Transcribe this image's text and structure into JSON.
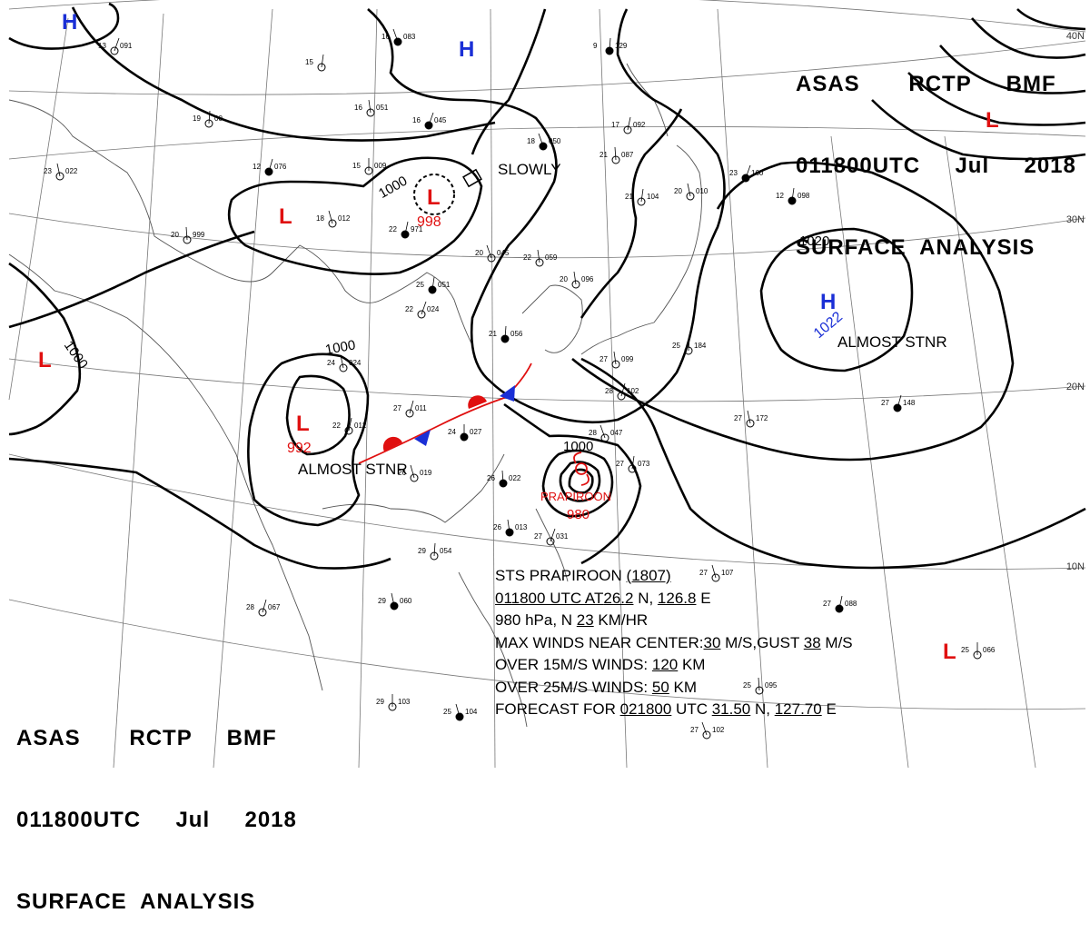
{
  "header": {
    "line1": [
      "ASAS",
      "RCTP",
      "BMF"
    ],
    "line2": [
      "011800UTC",
      "Jul",
      "2018"
    ],
    "line3": "SURFACE  ANALYSIS"
  },
  "latitude_labels": [
    "40N",
    "30N",
    "20N",
    "10N"
  ],
  "colors": {
    "high": "#1a2fd6",
    "low": "#e01010",
    "isobar": "#000000",
    "warm_front": "#e01010",
    "cold_front": "#1a2fd6"
  },
  "pressure_systems": {
    "highs": [
      {
        "symbol": "H",
        "value": ""
      },
      {
        "symbol": "H",
        "value": ""
      },
      {
        "symbol": "H",
        "value": "1022",
        "note": "ALMOST STNR"
      }
    ],
    "lows": [
      {
        "symbol": "L",
        "value": ""
      },
      {
        "symbol": "L",
        "value": "998",
        "note": "SLOWLY"
      },
      {
        "symbol": "L",
        "value": ""
      },
      {
        "symbol": "L",
        "value": "992",
        "note": "ALMOST STNR"
      },
      {
        "symbol": "L",
        "value": ""
      },
      {
        "symbol": "L",
        "value": ""
      }
    ]
  },
  "isobar_labels": [
    "1000",
    "1000",
    "1000",
    "1000",
    "1020"
  ],
  "typhoon": {
    "name": "PRAPIROON",
    "pressure": "980"
  },
  "storm_info": {
    "l1": [
      "STS  PRAPIROON  ",
      "(1807)"
    ],
    "l2": [
      "011800 UTC  AT",
      "26.2",
      " N,  ",
      "126.8",
      " E"
    ],
    "l3": [
      "980 hPa, N  ",
      "23",
      " KM/HR"
    ],
    "l4": [
      "MAX WINDS NEAR CENTER:",
      "30",
      " M/S,GUST ",
      "38",
      " M/S"
    ],
    "l5": [
      "OVER 15M/S WINDS: ",
      "120",
      " KM"
    ],
    "l6": [
      "OVER 25M/S WINDS: ",
      "50",
      " KM"
    ],
    "l7": [
      "FORECAST FOR ",
      "021800",
      " UTC ",
      "31.50",
      " N, ",
      "127.70",
      " E"
    ]
  },
  "station_plots": [
    {
      "t": "16",
      "p": "083"
    },
    {
      "t": "15",
      "p": ""
    },
    {
      "t": "16",
      "p": "051"
    },
    {
      "t": "16",
      "p": "045"
    },
    {
      "t": "19",
      "p": "00"
    },
    {
      "t": "23",
      "p": "022"
    },
    {
      "t": "12",
      "p": "076"
    },
    {
      "t": "15",
      "p": "009"
    },
    {
      "t": "18",
      "p": "012"
    },
    {
      "t": "22",
      "p": "971"
    },
    {
      "t": "20",
      "p": "999"
    },
    {
      "t": "20",
      "p": "045"
    },
    {
      "t": "25",
      "p": "051"
    },
    {
      "t": "22",
      "p": "059"
    },
    {
      "t": "22",
      "p": "024"
    },
    {
      "t": "21",
      "p": "056"
    },
    {
      "t": "24",
      "p": "024"
    },
    {
      "t": "27",
      "p": "011"
    },
    {
      "t": "24",
      "p": "027"
    },
    {
      "t": "26",
      "p": "019"
    },
    {
      "t": "22",
      "p": "012"
    },
    {
      "t": "26",
      "p": "022"
    },
    {
      "t": "28",
      "p": "047"
    },
    {
      "t": "27",
      "p": "073"
    },
    {
      "t": "26",
      "p": "013"
    },
    {
      "t": "27",
      "p": "031"
    },
    {
      "t": "29",
      "p": "054"
    },
    {
      "t": "29",
      "p": "060"
    },
    {
      "t": "28",
      "p": "067"
    },
    {
      "t": "29",
      "p": "103"
    },
    {
      "t": "25",
      "p": "104"
    },
    {
      "t": "17",
      "p": "092"
    },
    {
      "t": "21",
      "p": "087"
    },
    {
      "t": "18",
      "p": "050"
    },
    {
      "t": "21",
      "p": "104"
    },
    {
      "t": "20",
      "p": "096"
    },
    {
      "t": "23",
      "p": "160"
    },
    {
      "t": "25",
      "p": "184"
    },
    {
      "t": "27",
      "p": "172"
    },
    {
      "t": "27",
      "p": "148"
    },
    {
      "t": "25",
      "p": "066"
    },
    {
      "t": "27",
      "p": "107"
    },
    {
      "t": "27",
      "p": "088"
    },
    {
      "t": "25",
      "p": "095"
    },
    {
      "t": "27",
      "p": "102"
    },
    {
      "t": "12",
      "p": "098"
    },
    {
      "t": "27",
      "p": "099"
    },
    {
      "t": "13",
      "p": "091"
    },
    {
      "t": "9",
      "p": "129"
    },
    {
      "t": "20",
      "p": "010"
    },
    {
      "t": "28",
      "p": "102"
    }
  ]
}
